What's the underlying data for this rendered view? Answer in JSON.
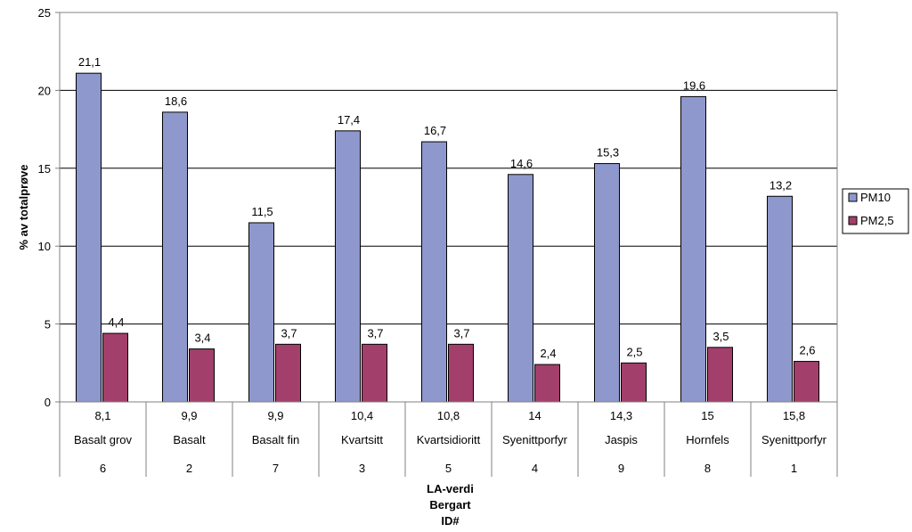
{
  "chart_data": {
    "type": "bar",
    "categories": [
      {
        "la": "8,1",
        "rock": "Basalt grov",
        "id": "6"
      },
      {
        "la": "9,9",
        "rock": "Basalt",
        "id": "2"
      },
      {
        "la": "9,9",
        "rock": "Basalt fin",
        "id": "7"
      },
      {
        "la": "10,4",
        "rock": "Kvartsitt",
        "id": "3"
      },
      {
        "la": "10,8",
        "rock": "Kvartsidioritt",
        "id": "5"
      },
      {
        "la": "14",
        "rock": "Syenittporfyr",
        "id": "4"
      },
      {
        "la": "14,3",
        "rock": "Jaspis",
        "id": "9"
      },
      {
        "la": "15",
        "rock": "Hornfels",
        "id": "8"
      },
      {
        "la": "15,8",
        "rock": "Syenittporfyr",
        "id": "1"
      }
    ],
    "series": [
      {
        "name": "PM10",
        "color": "#8f98cc",
        "values": [
          21.1,
          18.6,
          11.5,
          17.4,
          16.7,
          14.6,
          15.3,
          19.6,
          13.2
        ],
        "labels": [
          "21,1",
          "18,6",
          "11,5",
          "17,4",
          "16,7",
          "14,6",
          "15,3",
          "19,6",
          "13,2"
        ]
      },
      {
        "name": "PM2,5",
        "color": "#a33f6b",
        "values": [
          4.4,
          3.4,
          3.7,
          3.7,
          3.7,
          2.4,
          2.5,
          3.5,
          2.6
        ],
        "labels": [
          "4,4",
          "3,4",
          "3,7",
          "3,7",
          "3,7",
          "2,4",
          "2,5",
          "3,5",
          "2,6"
        ]
      }
    ],
    "ylabel": "% av totalprøve",
    "xlabel_lines": [
      "LA-verdi",
      "Bergart",
      "ID#"
    ],
    "ylim": [
      0,
      25
    ],
    "yticks": [
      0,
      5,
      10,
      15,
      20,
      25
    ],
    "grid": true,
    "legend_position": "right"
  }
}
